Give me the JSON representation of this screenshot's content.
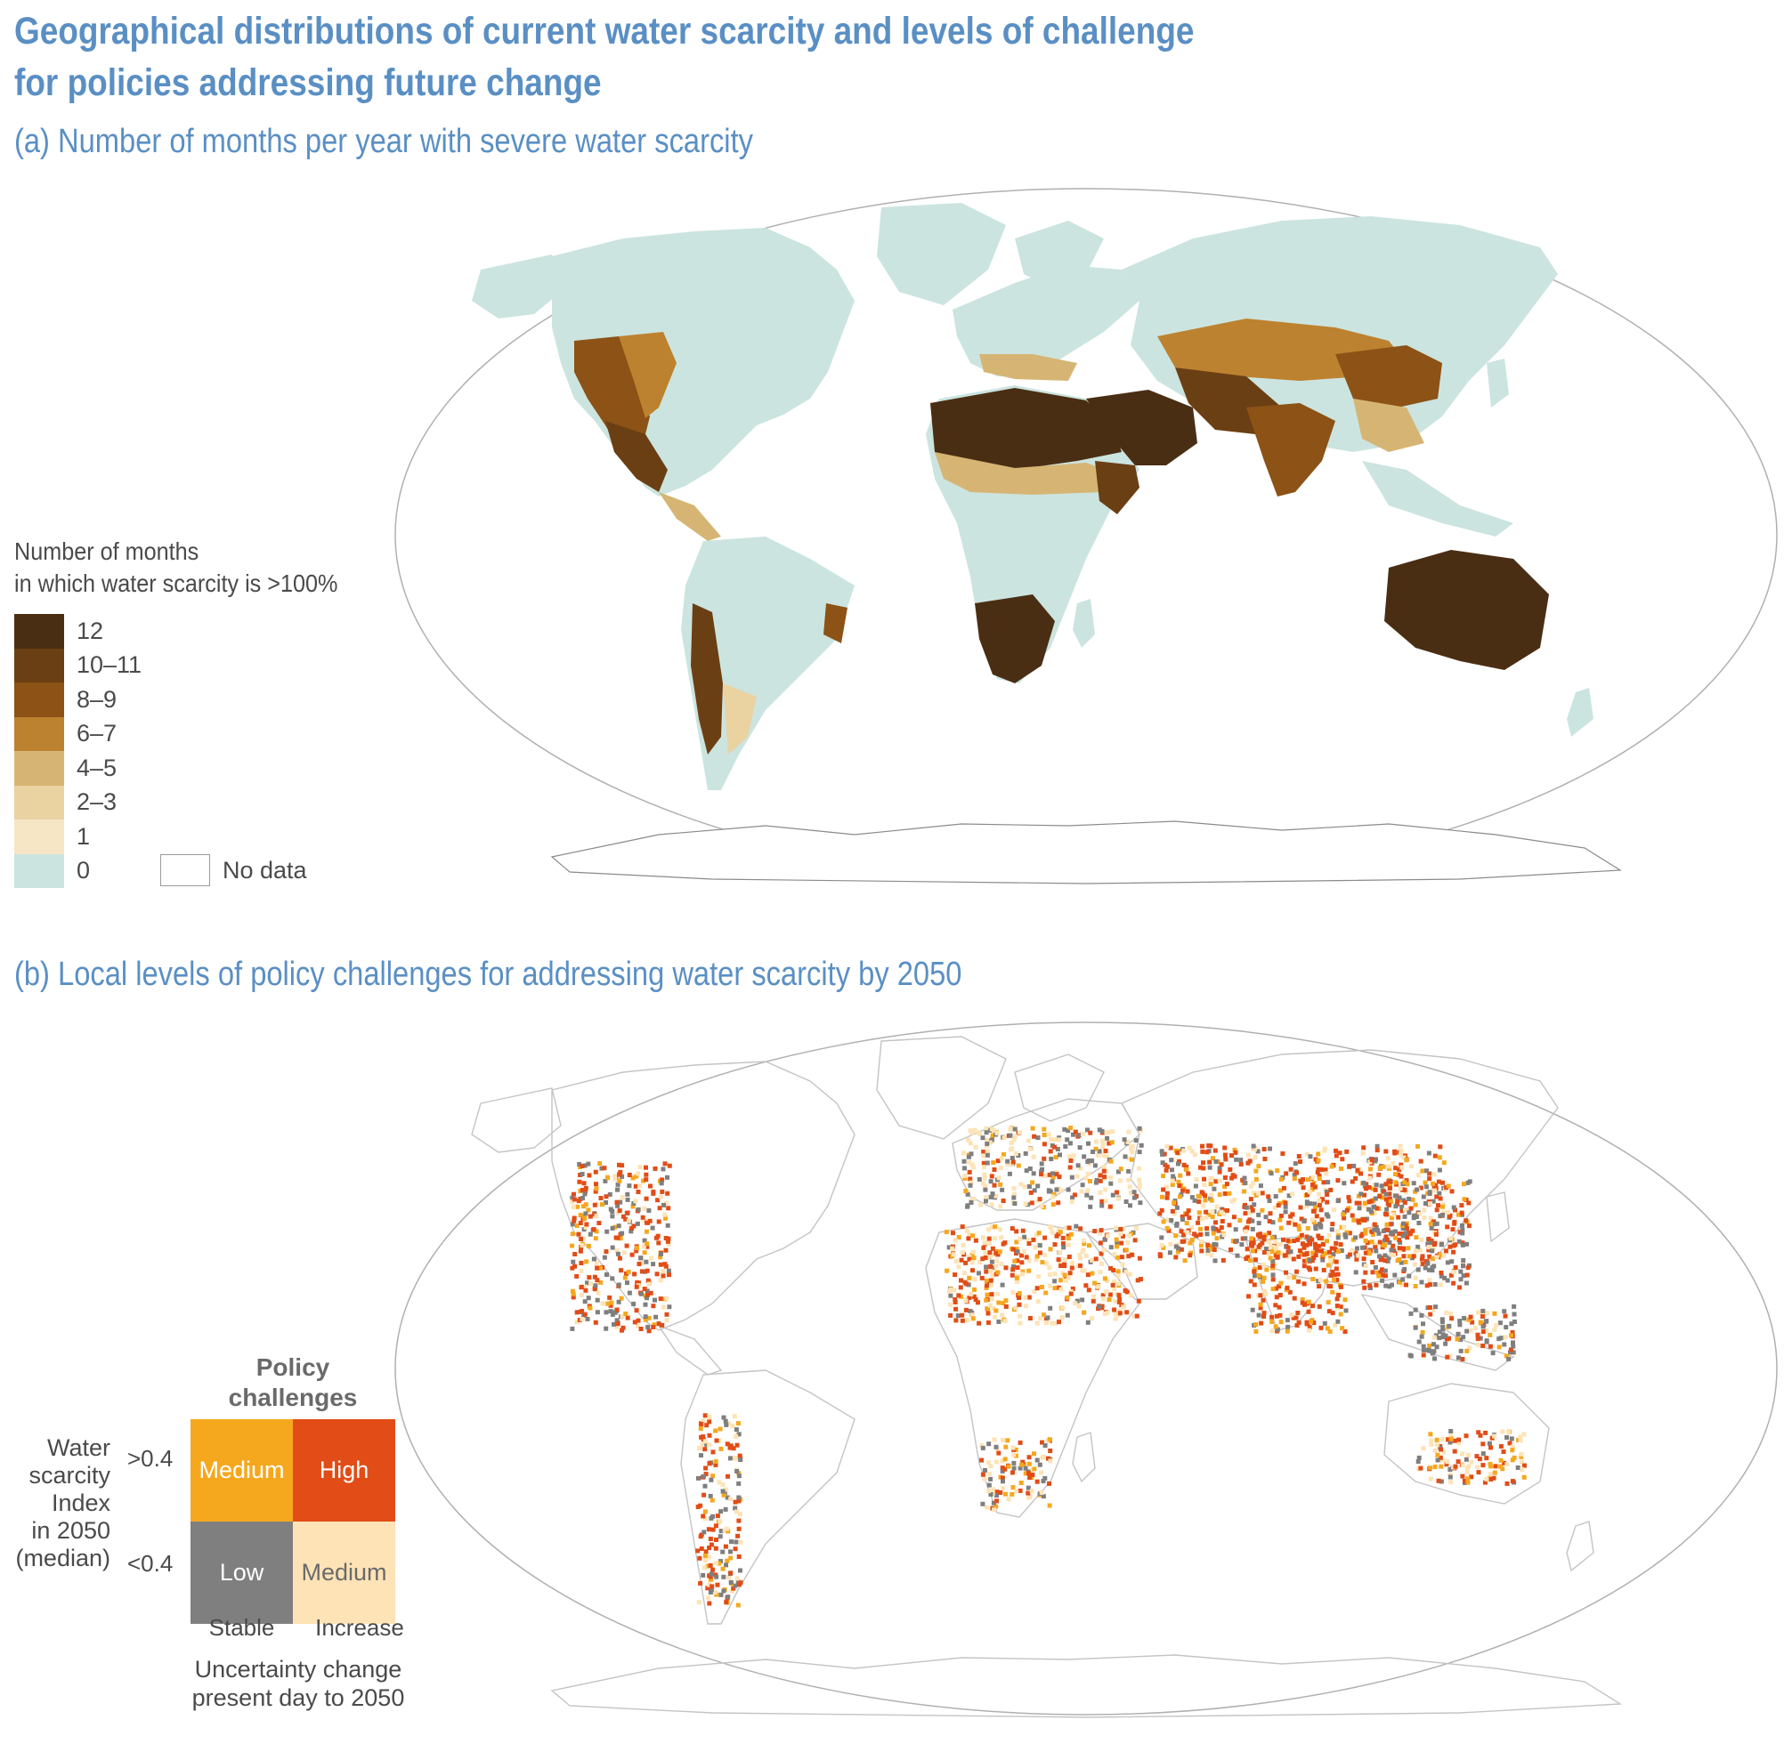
{
  "title": "Geographical distributions of current water scarcity and levels of challenge for policies addressing future change",
  "panel_a": {
    "subtitle": "(a) Number of months per year with severe water scarcity",
    "legend_title_line1": "Number of months",
    "legend_title_line2": "in which water scarcity is >100%",
    "legend_items": [
      {
        "label": "12",
        "color": "#4a2e14"
      },
      {
        "label": "10–11",
        "color": "#6b3f14"
      },
      {
        "label": "8–9",
        "color": "#8c5216"
      },
      {
        "label": "6–7",
        "color": "#bd822f"
      },
      {
        "label": "4–5",
        "color": "#d6b574"
      },
      {
        "label": "2–3",
        "color": "#ead2a1"
      },
      {
        "label": "1",
        "color": "#f6e6c6"
      },
      {
        "label": "0",
        "color": "#cbe4df"
      }
    ],
    "no_data_label": "No data"
  },
  "panel_b": {
    "subtitle": "(b) Local levels of policy challenges for addressing water scarcity by 2050",
    "legend_title": "Policy challenges",
    "y_axis_label": [
      "Water",
      "scarcity",
      "Index",
      "in 2050",
      "(median)"
    ],
    "y_ticks": [
      ">0.4",
      "<0.4"
    ],
    "x_ticks": [
      "Stable",
      "Increase"
    ],
    "x_axis_label": [
      "Uncertainty change",
      "present day to 2050"
    ],
    "cells": {
      "top_left": {
        "label": "Medium",
        "color": "#f5a81e"
      },
      "top_right": {
        "label": "High",
        "color": "#e24c16"
      },
      "bottom_left": {
        "label": "Low",
        "color": "#7f7f7f"
      },
      "bottom_right": {
        "label": "Medium",
        "color": "#fde3b6"
      }
    }
  }
}
